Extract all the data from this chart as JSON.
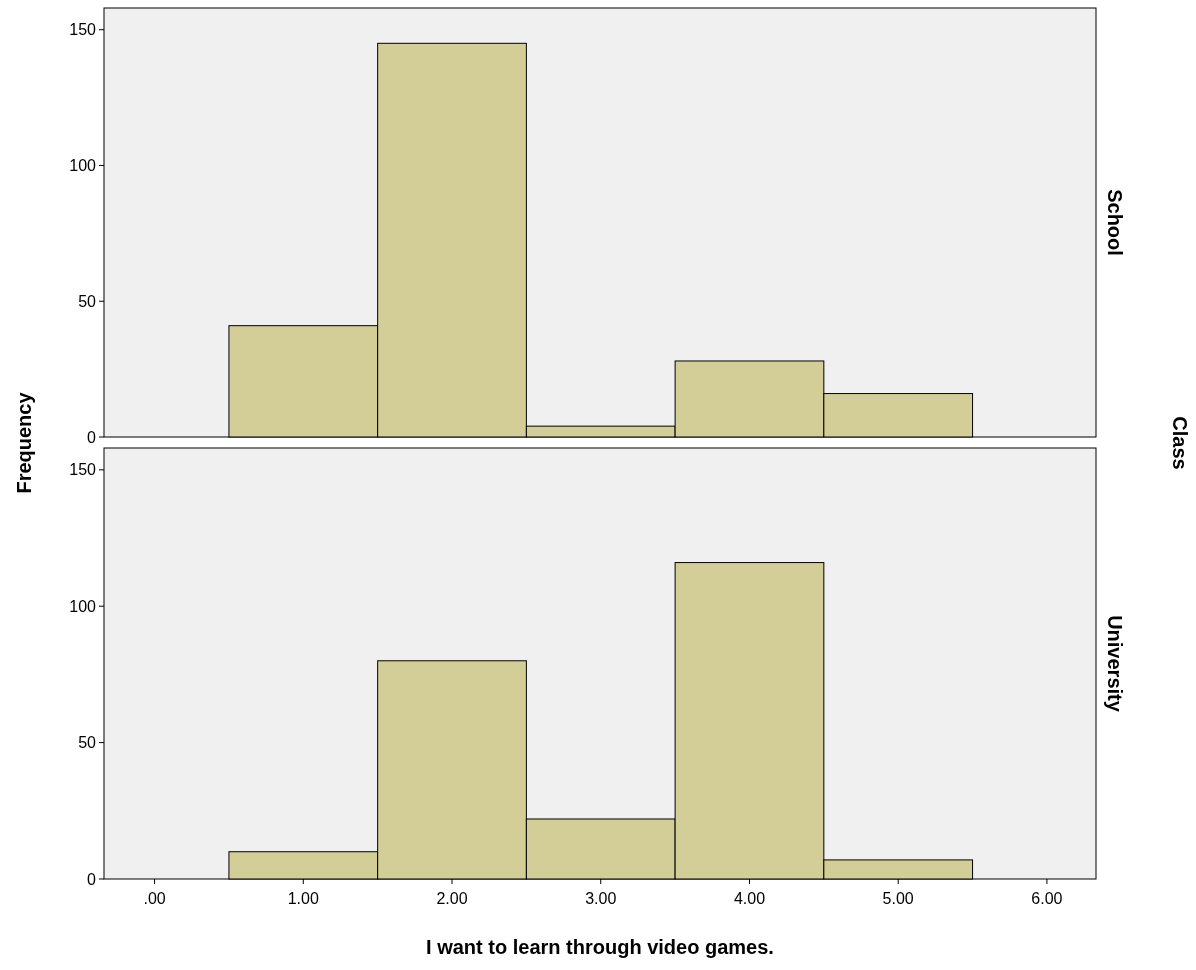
{
  "chart_data": [
    {
      "type": "histogram",
      "title": "School",
      "ylabel": "Frequency",
      "annotations": [
        "Class"
      ],
      "bins": [
        0.5,
        1.5,
        2.5,
        3.5,
        4.5,
        5.5
      ],
      "values": [
        41,
        145,
        4,
        28,
        16
      ],
      "color": "#d3ce97",
      "xlim": [
        -0.34,
        6.33
      ],
      "ylim": [
        0,
        158
      ],
      "yticks": [
        0,
        50,
        100,
        150
      ],
      "tick_labels": "y",
      "grid": false
    },
    {
      "type": "histogram",
      "title": "University",
      "xlabel": "I want to learn through video games.",
      "bins": [
        0.5,
        1.5,
        2.5,
        3.5,
        4.5,
        5.5
      ],
      "values": [
        10,
        80,
        22,
        116,
        7
      ],
      "color": "#d3ce97",
      "xlim": [
        -0.34,
        6.33
      ],
      "ylim": [
        0,
        158
      ],
      "yticks": [
        0,
        50,
        100,
        150
      ],
      "xticks": [
        {
          "value": 0,
          "label": ".00"
        },
        {
          "value": 1,
          "label": "1.00"
        },
        {
          "value": 2,
          "label": "2.00"
        },
        {
          "value": 3,
          "label": "3.00"
        },
        {
          "value": 4,
          "label": "4.00"
        },
        {
          "value": 5,
          "label": "5.00"
        },
        {
          "value": 6,
          "label": "6.00"
        }
      ],
      "grid": false
    }
  ]
}
